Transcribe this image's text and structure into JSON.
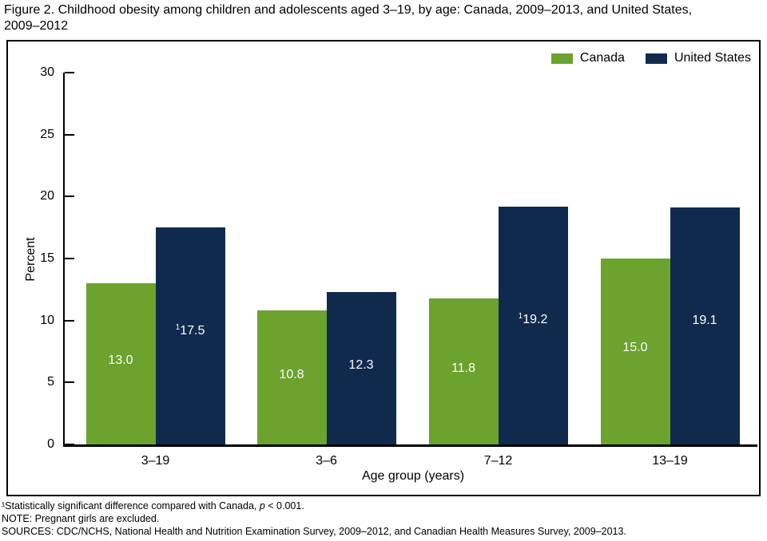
{
  "title": {
    "full": "Figure 2. Childhood obesity among children and adolescents aged 3–19, by age: Canada, 2009–2013, and United States, 2009–2012",
    "line1": "Figure 2. Childhood obesity among children and adolescents aged 3–19, by age: Canada, 2009–2013, and United States,",
    "line2": "2009–2012"
  },
  "chart_data": {
    "type": "bar",
    "title": "Childhood obesity among children and adolescents aged 3–19, by age: Canada, 2009–2013, and United States, 2009–2012",
    "categories": [
      "3–19",
      "3–6",
      "7–12",
      "13–19"
    ],
    "series": [
      {
        "name": "Canada",
        "color": "#6CA22E",
        "values": [
          13.0,
          10.8,
          11.8,
          15.0
        ],
        "labels": [
          "13.0",
          "10.8",
          "11.8",
          "15.0"
        ],
        "significant": [
          false,
          false,
          false,
          false
        ]
      },
      {
        "name": "United States",
        "color": "#102A4E",
        "values": [
          17.5,
          12.3,
          19.2,
          19.1
        ],
        "labels": [
          "17.5",
          "12.3",
          "19.2",
          "19.1"
        ],
        "significant": [
          true,
          false,
          true,
          false
        ]
      }
    ],
    "sig_marker": "1",
    "xlabel": "Age group (years)",
    "ylabel": "Percent",
    "ylim": [
      0,
      30
    ],
    "yticks": [
      0,
      5,
      10,
      15,
      20,
      25,
      30
    ],
    "grid": false,
    "legend_position": "top-right",
    "value_label_color": "#ffffff"
  },
  "footnotes": {
    "note1_pre": "¹Statistically significant difference compared with Canada, ",
    "note1_italic": "p",
    "note1_post": " < 0.001.",
    "note2": "NOTE: Pregnant girls are excluded.",
    "note3": "SOURCES: CDC/NCHS, National Health and Nutrition Examination Survey, 2009–2012, and Canadian Health Measures Survey, 2009–2013."
  }
}
